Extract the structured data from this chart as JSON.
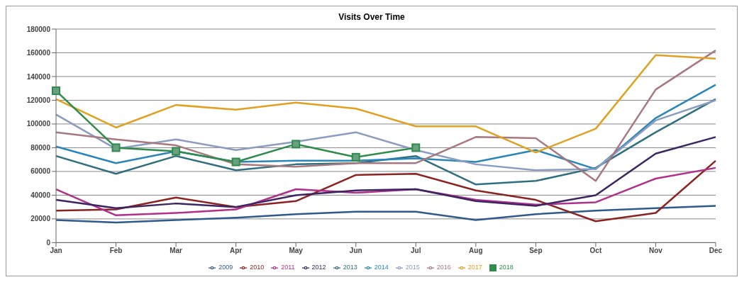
{
  "chart_data": {
    "type": "line",
    "title": "Visits Over Time",
    "categories": [
      "Jan",
      "Feb",
      "Mar",
      "Apr",
      "May",
      "Jun",
      "Jul",
      "Aug",
      "Sep",
      "Oct",
      "Nov",
      "Dec"
    ],
    "series": [
      {
        "name": "2009",
        "color": "#2e5a8c",
        "values": [
          19000,
          17000,
          19000,
          21000,
          24000,
          26000,
          26000,
          19000,
          24000,
          27000,
          29000,
          31000
        ]
      },
      {
        "name": "2010",
        "color": "#8b2320",
        "values": [
          27000,
          28000,
          38000,
          30000,
          35000,
          57000,
          58000,
          44000,
          36000,
          18000,
          25000,
          69000
        ]
      },
      {
        "name": "2011",
        "color": "#b0308a",
        "values": [
          45000,
          23000,
          25000,
          28000,
          45000,
          42000,
          45000,
          36000,
          32000,
          34000,
          54000,
          63000
        ]
      },
      {
        "name": "2012",
        "color": "#3c2560",
        "values": [
          36000,
          29000,
          33000,
          30000,
          40000,
          44000,
          45000,
          35000,
          31000,
          40000,
          75000,
          89000
        ]
      },
      {
        "name": "2013",
        "color": "#2f6f80",
        "values": [
          73000,
          58000,
          73000,
          61000,
          66000,
          67000,
          73000,
          49000,
          52000,
          63000,
          93000,
          121000
        ]
      },
      {
        "name": "2014",
        "color": "#2a86b8",
        "values": [
          81000,
          67000,
          77000,
          68000,
          69000,
          69000,
          71000,
          68000,
          78000,
          62000,
          105000,
          133000
        ]
      },
      {
        "name": "2015",
        "color": "#8a9cc0",
        "values": [
          108000,
          79000,
          87000,
          78000,
          85000,
          93000,
          78000,
          66000,
          61000,
          62000,
          103000,
          120000
        ]
      },
      {
        "name": "2016",
        "color": "#a87880",
        "values": [
          93000,
          87000,
          82000,
          66000,
          64000,
          67000,
          67000,
          89000,
          88000,
          52000,
          129000,
          162000
        ]
      },
      {
        "name": "2017",
        "color": "#e0a020",
        "values": [
          121000,
          97000,
          116000,
          112000,
          118000,
          113000,
          98000,
          98000,
          76000,
          96000,
          158000,
          155000
        ]
      },
      {
        "name": "2018",
        "color": "#2e8b4a",
        "marker": "square",
        "values": [
          128000,
          80000,
          77000,
          68000,
          83000,
          72000,
          80000,
          null,
          null,
          null,
          null,
          null
        ]
      }
    ],
    "ylim": [
      0,
      180000
    ],
    "yticks": [
      0,
      20000,
      40000,
      60000,
      80000,
      100000,
      120000,
      140000,
      160000,
      180000
    ],
    "grid": "y",
    "legend": "bottom",
    "marker": "none",
    "line_style": "solid"
  }
}
